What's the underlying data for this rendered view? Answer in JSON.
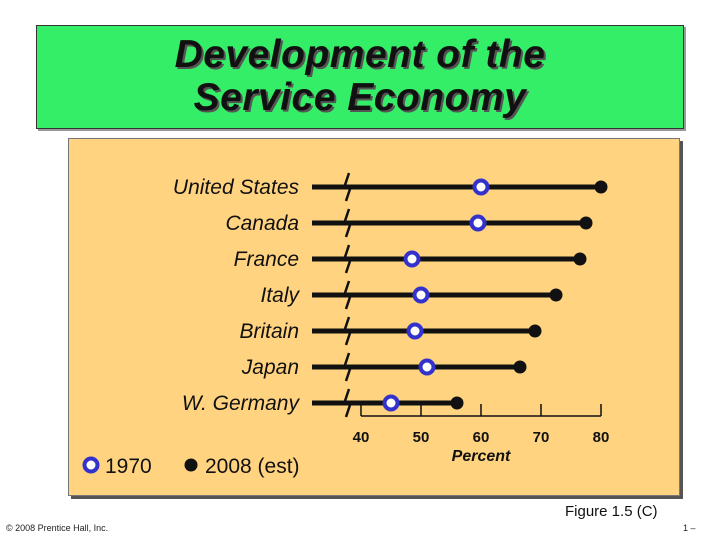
{
  "slide": {
    "title_line1": "Development of the",
    "title_line2": "Service Economy",
    "figure_label": "Figure 1.5 (C)",
    "copyright": "© 2008 Prentice Hall, Inc.",
    "page_number": "1 –"
  },
  "colors": {
    "title_bg": "#33ee66",
    "panel_bg": "#ffd37f",
    "marker_1970": "#3333cc",
    "marker_2008": "#111111"
  },
  "chart_data": {
    "type": "dot",
    "title": "Development of the Service Economy",
    "xlabel": "Percent",
    "ylabel": "",
    "xticks": [
      40,
      50,
      60,
      70,
      80
    ],
    "xlim": [
      40,
      80
    ],
    "categories": [
      "United States",
      "Canada",
      "France",
      "Italy",
      "Britain",
      "Japan",
      "W. Germany"
    ],
    "series": [
      {
        "name": "1970",
        "values": [
          60,
          59.5,
          48.5,
          50,
          49,
          51,
          45
        ]
      },
      {
        "name": "2008 (est)",
        "values": [
          80,
          77.5,
          76.5,
          72.5,
          69,
          66.5,
          56
        ]
      }
    ]
  }
}
